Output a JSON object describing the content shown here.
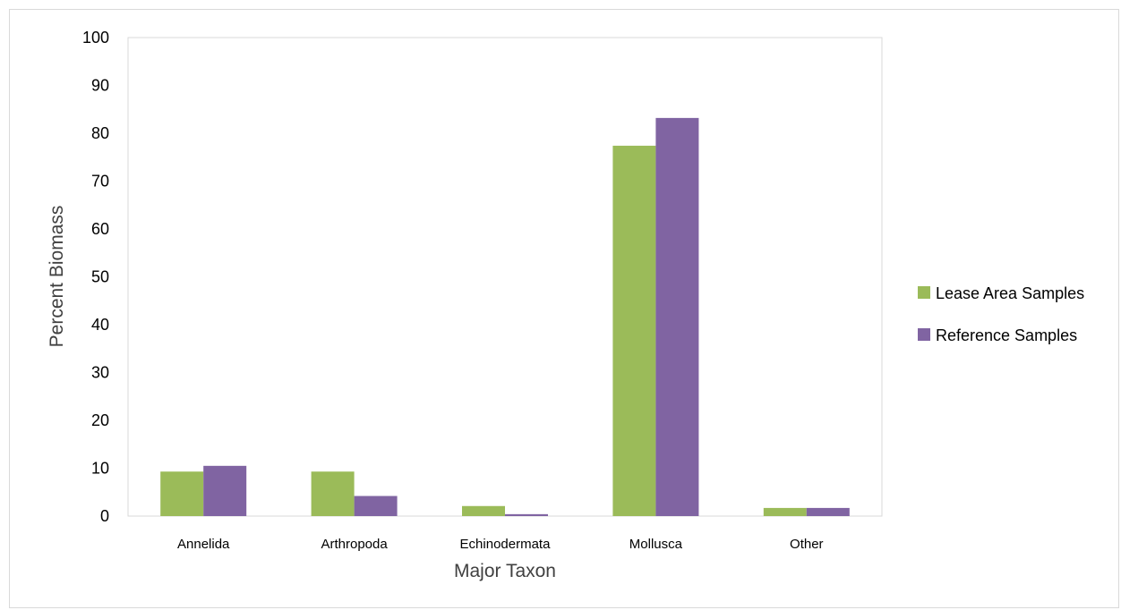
{
  "chart_data": {
    "type": "bar",
    "title": "",
    "xlabel": "Major Taxon",
    "ylabel": "Percent Biomass",
    "ylim": [
      0,
      100
    ],
    "yticks": [
      0,
      10,
      20,
      30,
      40,
      50,
      60,
      70,
      80,
      90,
      100
    ],
    "categories": [
      "Annelida",
      "Arthropoda",
      "Echinodermata",
      "Mollusca",
      "Other"
    ],
    "series": [
      {
        "name": "Lease Area Samples",
        "color": "#9bbb59",
        "values": [
          9.3,
          9.3,
          2.1,
          77.4,
          1.7
        ]
      },
      {
        "name": "Reference Samples",
        "color": "#8064a2",
        "values": [
          10.5,
          4.2,
          0.4,
          83.2,
          1.7
        ]
      }
    ],
    "grid": false,
    "legend_position": "right"
  }
}
